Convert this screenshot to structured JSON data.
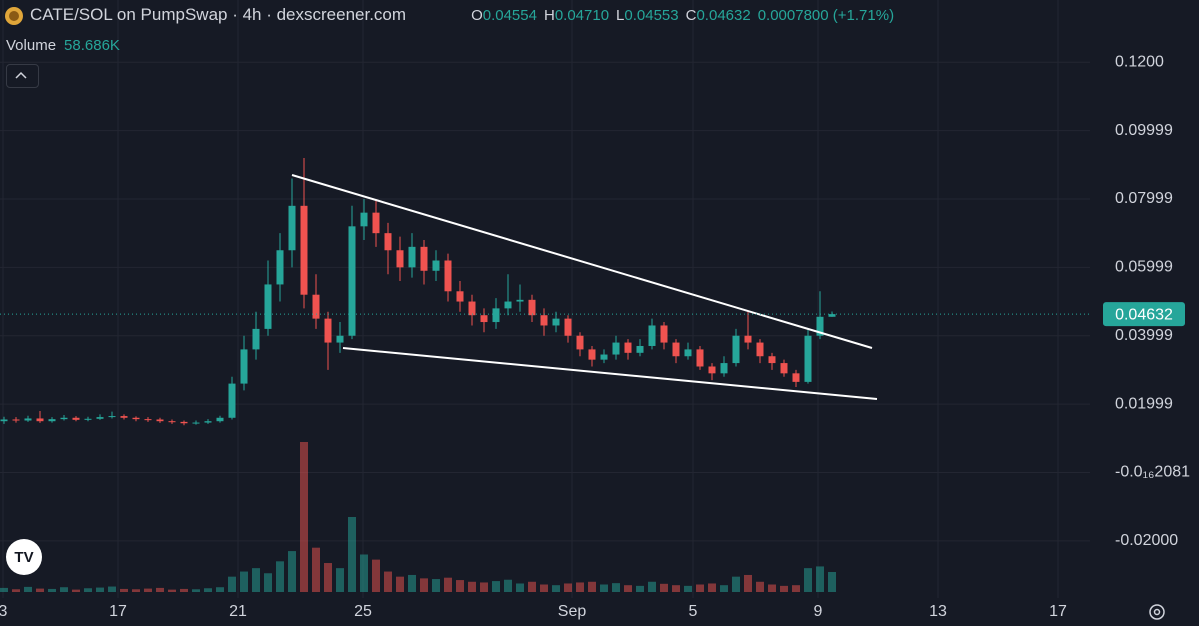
{
  "chart_data": {
    "type": "candlestick",
    "title": "CATE/SOL on PumpSwap · 4h · dexscreener.com",
    "ohlc_legend": [
      {
        "key": "O",
        "text": "0.04554"
      },
      {
        "key": "H",
        "text": "0.04710"
      },
      {
        "key": "L",
        "text": "0.04553"
      },
      {
        "key": "C",
        "text": "0.04632"
      }
    ],
    "change_text": "0.0007800 (+1.71%)",
    "volume_title": "Volume",
    "volume_text": "58.686K",
    "last_price_label": "0.04632",
    "up_color": "#26a69a",
    "down_color": "#ef5350",
    "categories": [
      "3",
      "17",
      "21",
      "25",
      "Sep",
      "5",
      "9",
      "13",
      "17"
    ],
    "ylim": [
      -0.0373,
      0.1382
    ],
    "yticks": [
      {
        "value": 0.12,
        "label": "0.1200"
      },
      0.09999,
      0.07999,
      0.05999,
      0.03999,
      0.01999,
      {
        "value": -2.081e-17,
        "label": "-0.0₁₆2081"
      },
      {
        "value": -0.02,
        "label": "-0.02000"
      }
    ],
    "grid": true,
    "open": [
      0.015,
      0.0155,
      0.0152,
      0.0158,
      0.015,
      0.0156,
      0.016,
      0.0154,
      0.0157,
      0.0162,
      0.0165,
      0.016,
      0.0156,
      0.0155,
      0.015,
      0.0148,
      0.0144,
      0.0146,
      0.015,
      0.016,
      0.026,
      0.036,
      0.042,
      0.055,
      0.065,
      0.078,
      0.052,
      0.045,
      0.038,
      0.04,
      0.072,
      0.076,
      0.07,
      0.065,
      0.06,
      0.066,
      0.059,
      0.062,
      0.053,
      0.05,
      0.046,
      0.044,
      0.048,
      0.05,
      0.0505,
      0.046,
      0.043,
      0.045,
      0.04,
      0.036,
      0.033,
      0.0345,
      0.038,
      0.035,
      0.037,
      0.043,
      0.038,
      0.034,
      0.036,
      0.031,
      0.029,
      0.032,
      0.04,
      0.038,
      0.034,
      0.032,
      0.029,
      0.0265,
      0.04,
      0.04554
    ],
    "high": [
      0.0163,
      0.0162,
      0.0166,
      0.018,
      0.0162,
      0.0168,
      0.0165,
      0.0163,
      0.017,
      0.0178,
      0.017,
      0.0164,
      0.0162,
      0.016,
      0.0155,
      0.0152,
      0.0152,
      0.0156,
      0.0166,
      0.028,
      0.04,
      0.047,
      0.062,
      0.07,
      0.086,
      0.092,
      0.058,
      0.047,
      0.044,
      0.078,
      0.08,
      0.08,
      0.073,
      0.069,
      0.07,
      0.068,
      0.065,
      0.064,
      0.056,
      0.052,
      0.048,
      0.051,
      0.058,
      0.055,
      0.052,
      0.048,
      0.047,
      0.046,
      0.041,
      0.037,
      0.036,
      0.04,
      0.039,
      0.039,
      0.045,
      0.044,
      0.039,
      0.038,
      0.037,
      0.032,
      0.034,
      0.042,
      0.047,
      0.039,
      0.035,
      0.033,
      0.03,
      0.042,
      0.053,
      0.0471
    ],
    "low": [
      0.0142,
      0.0146,
      0.0148,
      0.0145,
      0.0146,
      0.0152,
      0.015,
      0.015,
      0.0154,
      0.0158,
      0.0155,
      0.015,
      0.0148,
      0.0145,
      0.0142,
      0.0138,
      0.014,
      0.0142,
      0.0146,
      0.0155,
      0.024,
      0.033,
      0.04,
      0.05,
      0.06,
      0.048,
      0.042,
      0.03,
      0.035,
      0.039,
      0.068,
      0.066,
      0.058,
      0.056,
      0.057,
      0.055,
      0.056,
      0.05,
      0.047,
      0.043,
      0.041,
      0.042,
      0.046,
      0.047,
      0.044,
      0.04,
      0.041,
      0.038,
      0.034,
      0.031,
      0.032,
      0.033,
      0.033,
      0.034,
      0.036,
      0.036,
      0.032,
      0.033,
      0.03,
      0.027,
      0.028,
      0.031,
      0.036,
      0.032,
      0.03,
      0.028,
      0.025,
      0.026,
      0.039,
      0.04553
    ],
    "close": [
      0.0155,
      0.0152,
      0.0158,
      0.015,
      0.0156,
      0.016,
      0.0154,
      0.0157,
      0.0162,
      0.0165,
      0.016,
      0.0156,
      0.0155,
      0.015,
      0.0148,
      0.0144,
      0.0146,
      0.015,
      0.016,
      0.026,
      0.036,
      0.042,
      0.055,
      0.065,
      0.078,
      0.052,
      0.045,
      0.038,
      0.04,
      0.072,
      0.076,
      0.07,
      0.065,
      0.06,
      0.066,
      0.059,
      0.062,
      0.053,
      0.05,
      0.046,
      0.044,
      0.048,
      0.05,
      0.0505,
      0.046,
      0.043,
      0.045,
      0.04,
      0.036,
      0.033,
      0.0345,
      0.038,
      0.035,
      0.037,
      0.043,
      0.038,
      0.034,
      0.036,
      0.031,
      0.029,
      0.032,
      0.04,
      0.038,
      0.034,
      0.032,
      0.029,
      0.0265,
      0.04,
      0.04554,
      0.04632
    ],
    "volume": [
      12,
      8,
      15,
      10,
      9,
      14,
      7,
      11,
      13,
      16,
      9,
      8,
      10,
      12,
      7,
      9,
      8,
      11,
      14,
      45,
      60,
      70,
      55,
      90,
      120,
      440,
      130,
      85,
      70,
      220,
      110,
      95,
      60,
      45,
      50,
      40,
      38,
      42,
      35,
      30,
      28,
      32,
      36,
      25,
      30,
      22,
      20,
      25,
      28,
      30,
      22,
      26,
      20,
      18,
      30,
      24,
      20,
      18,
      22,
      25,
      20,
      45,
      50,
      30,
      22,
      18,
      20,
      70,
      75,
      58.686
    ]
  }
}
